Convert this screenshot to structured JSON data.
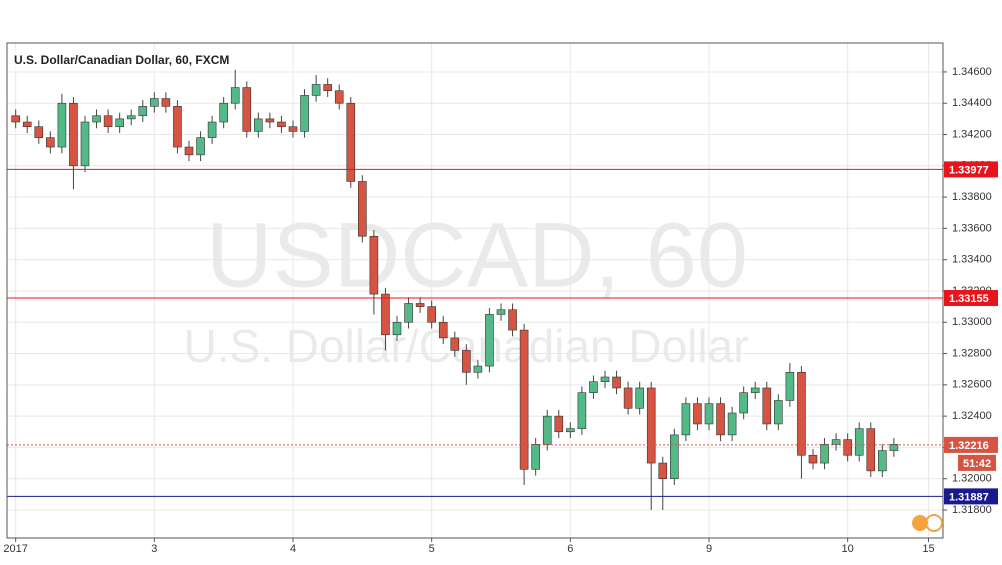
{
  "chart_data": {
    "type": "candlestick",
    "title": "U.S. Dollar/Canadian Dollar, 60, FXCM",
    "watermark": "USDCAD, 60",
    "watermark_subtitle": "U.S. Dollar/Canadian Dollar",
    "up_color": "#53b987",
    "down_color": "#d75442",
    "grid": true,
    "x": [
      0,
      2,
      4,
      6,
      8,
      10,
      12,
      14,
      16,
      18,
      20,
      22,
      24,
      26,
      28,
      30,
      32,
      34,
      36,
      38,
      40,
      42,
      44,
      46,
      48,
      50,
      52,
      54,
      56,
      58,
      60,
      62,
      64,
      66,
      68,
      70,
      72,
      74,
      76,
      78,
      80,
      82,
      84,
      86,
      88,
      90,
      92,
      94,
      96,
      98,
      100,
      102,
      104,
      106,
      108,
      110,
      112,
      114,
      116,
      118,
      120,
      122,
      124,
      126,
      128,
      130,
      132,
      134,
      136,
      138,
      140,
      142,
      144,
      146,
      148,
      150,
      152
    ],
    "open": [
      1.3432,
      1.3428,
      1.3425,
      1.3418,
      1.3412,
      1.344,
      1.34,
      1.3428,
      1.3432,
      1.3425,
      1.343,
      1.3432,
      1.3438,
      1.3443,
      1.3438,
      1.3412,
      1.3407,
      1.3418,
      1.3428,
      1.344,
      1.345,
      1.3422,
      1.343,
      1.3428,
      1.3425,
      1.3422,
      1.3445,
      1.3452,
      1.3448,
      1.344,
      1.339,
      1.3355,
      1.3318,
      1.3292,
      1.33,
      1.3312,
      1.331,
      1.33,
      1.329,
      1.3282,
      1.3268,
      1.3272,
      1.3305,
      1.3308,
      1.3295,
      1.3206,
      1.3222,
      1.324,
      1.323,
      1.3232,
      1.3255,
      1.3262,
      1.3265,
      1.3258,
      1.3245,
      1.3258,
      1.321,
      1.32,
      1.3228,
      1.3248,
      1.3235,
      1.3248,
      1.3228,
      1.3242,
      1.3255,
      1.3258,
      1.3235,
      1.325,
      1.3268,
      1.3215,
      1.321,
      1.3222,
      1.3225,
      1.3215,
      1.3232,
      1.3205,
      1.3218
    ],
    "high": [
      1.3436,
      1.3432,
      1.3429,
      1.3422,
      1.3446,
      1.3444,
      1.3432,
      1.3436,
      1.3436,
      1.3434,
      1.3436,
      1.3442,
      1.3447,
      1.3447,
      1.3442,
      1.3416,
      1.3422,
      1.3432,
      1.3444,
      1.3462,
      1.3454,
      1.3434,
      1.3434,
      1.3432,
      1.3429,
      1.3449,
      1.3458,
      1.3456,
      1.3452,
      1.3444,
      1.3394,
      1.3359,
      1.3322,
      1.3304,
      1.3316,
      1.3316,
      1.3314,
      1.3304,
      1.3294,
      1.3286,
      1.3276,
      1.3309,
      1.3312,
      1.3312,
      1.3299,
      1.3226,
      1.3244,
      1.3244,
      1.3236,
      1.3259,
      1.3266,
      1.3269,
      1.3269,
      1.3262,
      1.3262,
      1.3262,
      1.3214,
      1.3232,
      1.3252,
      1.3252,
      1.3252,
      1.3252,
      1.3246,
      1.3259,
      1.3262,
      1.3262,
      1.3254,
      1.3274,
      1.3272,
      1.3219,
      1.3226,
      1.3229,
      1.3229,
      1.3236,
      1.3236,
      1.3222,
      1.3226
    ],
    "low": [
      1.3424,
      1.3421,
      1.3414,
      1.3408,
      1.3408,
      1.3385,
      1.3396,
      1.3424,
      1.3421,
      1.3421,
      1.3426,
      1.3428,
      1.3434,
      1.3434,
      1.3408,
      1.3403,
      1.3403,
      1.3414,
      1.3424,
      1.3436,
      1.3418,
      1.3418,
      1.3424,
      1.3421,
      1.3418,
      1.3418,
      1.3441,
      1.3444,
      1.3436,
      1.3386,
      1.3351,
      1.3305,
      1.3282,
      1.3288,
      1.3296,
      1.3306,
      1.3296,
      1.3286,
      1.3278,
      1.326,
      1.3264,
      1.3268,
      1.3301,
      1.3291,
      1.3196,
      1.3202,
      1.3218,
      1.3226,
      1.3226,
      1.3228,
      1.3251,
      1.3258,
      1.3254,
      1.3241,
      1.3241,
      1.318,
      1.318,
      1.3196,
      1.3224,
      1.3231,
      1.3231,
      1.3224,
      1.3224,
      1.3238,
      1.3251,
      1.3231,
      1.3231,
      1.3246,
      1.32,
      1.3206,
      1.3206,
      1.3218,
      1.3211,
      1.3211,
      1.3201,
      1.3201,
      1.3214
    ],
    "close": [
      1.3428,
      1.3425,
      1.3418,
      1.3412,
      1.344,
      1.34,
      1.3428,
      1.3432,
      1.3425,
      1.343,
      1.3432,
      1.3438,
      1.3443,
      1.3438,
      1.3412,
      1.3407,
      1.3418,
      1.3428,
      1.344,
      1.345,
      1.3422,
      1.343,
      1.3428,
      1.3425,
      1.3422,
      1.3445,
      1.3452,
      1.3448,
      1.344,
      1.339,
      1.3355,
      1.3318,
      1.3292,
      1.33,
      1.3312,
      1.331,
      1.33,
      1.329,
      1.3282,
      1.3268,
      1.3272,
      1.3305,
      1.3308,
      1.3295,
      1.3206,
      1.3222,
      1.324,
      1.323,
      1.3232,
      1.3255,
      1.3262,
      1.3265,
      1.3258,
      1.3245,
      1.3258,
      1.321,
      1.32,
      1.3228,
      1.3248,
      1.3235,
      1.3248,
      1.3228,
      1.3242,
      1.3255,
      1.3258,
      1.3235,
      1.325,
      1.3268,
      1.3215,
      1.321,
      1.3222,
      1.3225,
      1.3215,
      1.3232,
      1.3205,
      1.3218,
      1.3222
    ],
    "xlim": [
      -1.5,
      160.5
    ],
    "xticks": [
      {
        "value": 0,
        "label": "2017"
      },
      {
        "value": 24,
        "label": "3"
      },
      {
        "value": 48,
        "label": "4"
      },
      {
        "value": 72,
        "label": "5"
      },
      {
        "value": 96,
        "label": "6"
      },
      {
        "value": 120,
        "label": "9"
      },
      {
        "value": 144,
        "label": "10"
      },
      {
        "value": 158,
        "label": "15"
      }
    ],
    "ylim": [
      1.31621,
      1.34785
    ],
    "yticks": [
      {
        "value": 1.318,
        "label": "1.31800"
      },
      {
        "value": 1.32,
        "label": "1.32000"
      },
      {
        "value": 1.322,
        "label": "1.32200"
      },
      {
        "value": 1.324,
        "label": "1.32400"
      },
      {
        "value": 1.326,
        "label": "1.32600"
      },
      {
        "value": 1.328,
        "label": "1.32800"
      },
      {
        "value": 1.33,
        "label": "1.33000"
      },
      {
        "value": 1.332,
        "label": "1.33200"
      },
      {
        "value": 1.334,
        "label": "1.33400"
      },
      {
        "value": 1.336,
        "label": "1.33600"
      },
      {
        "value": 1.338,
        "label": "1.33800"
      },
      {
        "value": 1.34,
        "label": "1.34000"
      },
      {
        "value": 1.342,
        "label": "1.34200"
      },
      {
        "value": 1.344,
        "label": "1.34400"
      },
      {
        "value": 1.346,
        "label": "1.34600"
      }
    ],
    "levels": [
      {
        "value": 1.33977,
        "color": "#e8141c"
      },
      {
        "value": 1.33155,
        "color": "#e8141c"
      },
      {
        "value": 1.31887,
        "color": "#1a1a8c"
      }
    ],
    "last_price": {
      "value": 1.32216,
      "color": "#d75442",
      "countdown": "51:42"
    }
  }
}
